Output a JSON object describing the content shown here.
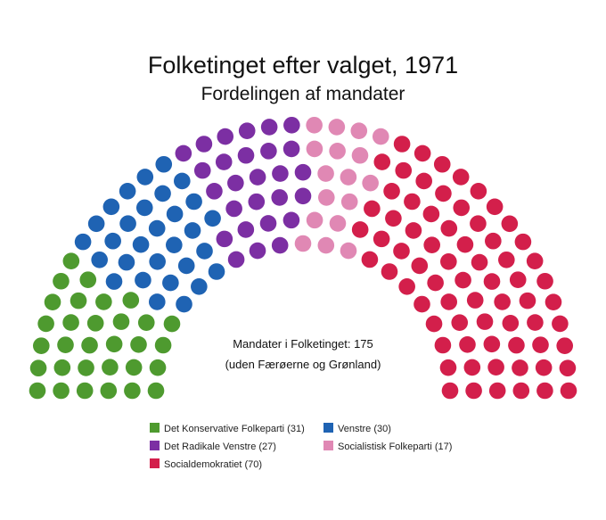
{
  "chart_data": {
    "type": "parliament",
    "title": "Folketinget efter valget, 1971",
    "subtitle": "Fordelingen af mandater",
    "total_label": "Mandater i Folketinget: 175",
    "total_note": "(uden Færøerne og Grønland)",
    "total_seats": 175,
    "parties": [
      {
        "name": "Det Konservative Folkeparti",
        "legend": "Det Konservative Folkeparti (31)",
        "seats": 31,
        "color": "#4e9a2f"
      },
      {
        "name": "Venstre",
        "legend": "Venstre (30)",
        "seats": 30,
        "color": "#1f63b3"
      },
      {
        "name": "Det Radikale Venstre",
        "legend": "Det Radikale Venstre (27)",
        "seats": 27,
        "color": "#7c2fa3"
      },
      {
        "name": "Socialistisk Folkeparti",
        "legend": "Socialistisk Folkeparti (17)",
        "seats": 17,
        "color": "#e088b4"
      },
      {
        "name": "Socialdemokratiet",
        "legend": "Socialdemokratiet (70)",
        "seats": 70,
        "color": "#d31f4b"
      }
    ],
    "legend_order": [
      0,
      1,
      2,
      3,
      4
    ]
  }
}
